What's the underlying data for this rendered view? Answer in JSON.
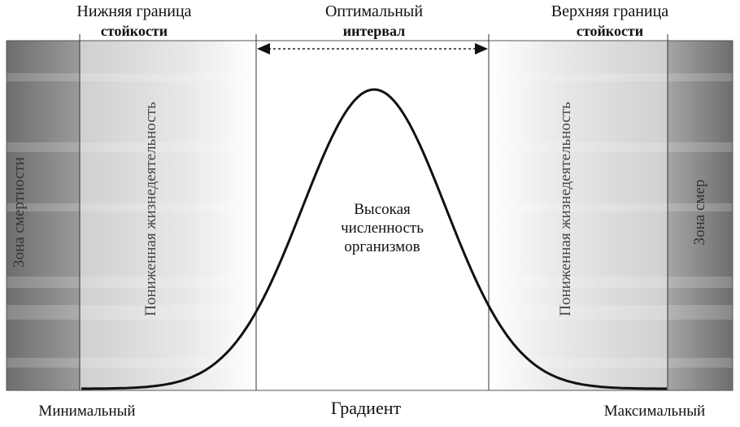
{
  "headers": {
    "lower": {
      "line1": "Нижняя граница",
      "line2": "стойкости"
    },
    "optimal": {
      "line1": "Оптимальный",
      "line2": "интервал"
    },
    "upper": {
      "line1": "Верхняя граница",
      "line2": "стойкости"
    }
  },
  "zones": {
    "death_left": "Зона смертности",
    "reduced_left": "Пониженная жизнедеятельность",
    "reduced_right": "Пониженная жизнедеятельность",
    "death_right": "Зона смер"
  },
  "center": {
    "line1": "Высокая",
    "line2": "численность",
    "line3": "организмов"
  },
  "axis": {
    "min": "Минимальный",
    "gradient": "Градиент",
    "max": "Максимальный"
  },
  "colors": {
    "death_zone": "#7d7d7d",
    "reduced_zone": "#d4d4d4",
    "curve": "#111111"
  }
}
